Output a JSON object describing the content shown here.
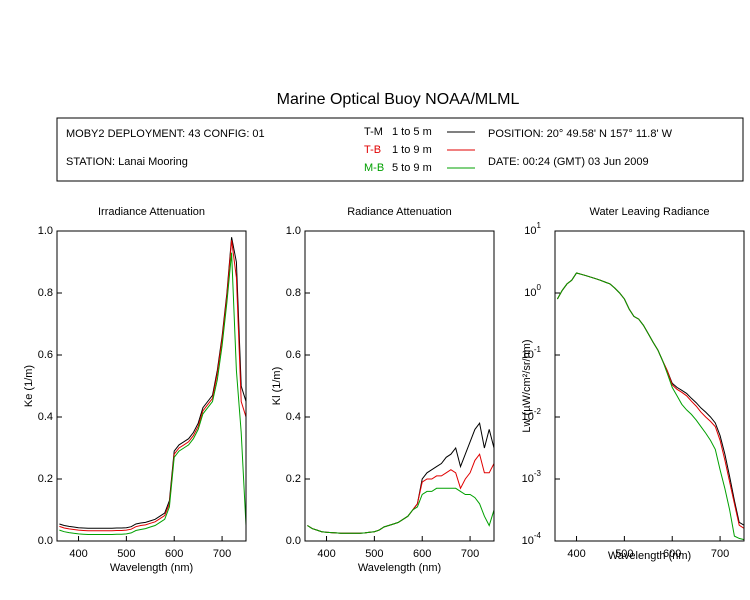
{
  "title": "Marine Optical Buoy NOAA/MLML",
  "info": {
    "deployment": "MOBY2 DEPLOYMENT: 43 CONFIG: 01",
    "station": "STATION: Lanai Mooring",
    "position": "POSITION: 20° 49.58' N   157° 11.8' W",
    "date": "DATE: 00:24 (GMT) 03 Jun 2009"
  },
  "chart_data": [
    {
      "type": "line",
      "title": "Irradiance Attenuation",
      "x_label": "Wavelength (nm)",
      "y_label": "Ke  (1/m)",
      "xlim": [
        355,
        750
      ],
      "xticks": [
        400,
        500,
        600,
        700
      ],
      "ylim": [
        0,
        1
      ],
      "yticks": [
        {
          "value": 0,
          "label": "0.0"
        },
        0.2,
        0.4,
        0.6,
        0.8,
        {
          "value": 1,
          "label": "1.0"
        }
      ],
      "x": [
        360,
        370,
        380,
        390,
        400,
        410,
        420,
        430,
        440,
        450,
        460,
        470,
        480,
        490,
        500,
        510,
        520,
        530,
        540,
        550,
        560,
        570,
        580,
        590,
        600,
        610,
        620,
        630,
        640,
        650,
        660,
        670,
        680,
        690,
        700,
        710,
        720,
        730,
        740,
        750
      ],
      "series": [
        {
          "name": "T-M",
          "depth": "1 to 5  m",
          "color": "#000000",
          "values": [
            0.055,
            0.05,
            0.047,
            0.045,
            0.043,
            0.042,
            0.041,
            0.041,
            0.041,
            0.041,
            0.041,
            0.041,
            0.042,
            0.042,
            0.043,
            0.046,
            0.055,
            0.058,
            0.06,
            0.065,
            0.07,
            0.08,
            0.09,
            0.13,
            0.29,
            0.31,
            0.32,
            0.33,
            0.35,
            0.38,
            0.43,
            0.45,
            0.47,
            0.55,
            0.66,
            0.8,
            0.98,
            0.9,
            0.5,
            0.45
          ]
        },
        {
          "name": "T-B",
          "depth": "1 to 9  m",
          "color": "#e00000",
          "values": [
            0.047,
            0.042,
            0.039,
            0.037,
            0.035,
            0.034,
            0.033,
            0.033,
            0.033,
            0.033,
            0.033,
            0.033,
            0.034,
            0.034,
            0.035,
            0.038,
            0.046,
            0.05,
            0.052,
            0.057,
            0.062,
            0.072,
            0.082,
            0.12,
            0.28,
            0.3,
            0.31,
            0.32,
            0.34,
            0.37,
            0.42,
            0.44,
            0.46,
            0.54,
            0.65,
            0.79,
            0.97,
            0.85,
            0.45,
            0.4
          ]
        },
        {
          "name": "M-B",
          "depth": "5 to 9  m",
          "color": "#00a000",
          "values": [
            0.035,
            0.03,
            0.027,
            0.025,
            0.023,
            0.022,
            0.021,
            0.021,
            0.021,
            0.021,
            0.021,
            0.021,
            0.022,
            0.022,
            0.023,
            0.026,
            0.034,
            0.037,
            0.04,
            0.045,
            0.05,
            0.06,
            0.07,
            0.11,
            0.27,
            0.29,
            0.3,
            0.31,
            0.33,
            0.36,
            0.41,
            0.43,
            0.45,
            0.52,
            0.63,
            0.77,
            0.93,
            0.55,
            0.35,
            0.05
          ]
        }
      ]
    },
    {
      "type": "line",
      "title": "Radiance Attenuation",
      "x_label": "Wavelength (nm)",
      "y_label": "Kl  (1/m)",
      "xlim": [
        355,
        750
      ],
      "xticks": [
        400,
        500,
        600,
        700
      ],
      "ylim": [
        0,
        1
      ],
      "yticks": [
        {
          "value": 0,
          "label": "0.0"
        },
        0.2,
        0.4,
        0.6,
        0.8,
        {
          "value": 1,
          "label": "1.0"
        }
      ],
      "x": [
        360,
        370,
        380,
        390,
        400,
        410,
        420,
        430,
        440,
        450,
        460,
        470,
        480,
        490,
        500,
        510,
        520,
        530,
        540,
        550,
        560,
        570,
        580,
        590,
        600,
        610,
        620,
        630,
        640,
        650,
        660,
        670,
        680,
        690,
        700,
        710,
        720,
        730,
        740,
        750
      ],
      "series": [
        {
          "name": "T-M",
          "color": "#000000",
          "values": [
            0.05,
            0.04,
            0.035,
            0.03,
            0.028,
            0.027,
            0.026,
            0.025,
            0.025,
            0.025,
            0.025,
            0.025,
            0.026,
            0.028,
            0.03,
            0.035,
            0.045,
            0.05,
            0.055,
            0.06,
            0.07,
            0.08,
            0.1,
            0.12,
            0.2,
            0.22,
            0.23,
            0.24,
            0.25,
            0.27,
            0.28,
            0.3,
            0.24,
            0.28,
            0.32,
            0.36,
            0.38,
            0.3,
            0.36,
            0.3
          ]
        },
        {
          "name": "T-B",
          "color": "#e00000",
          "values": [
            0.05,
            0.04,
            0.035,
            0.03,
            0.028,
            0.027,
            0.026,
            0.025,
            0.025,
            0.025,
            0.025,
            0.025,
            0.026,
            0.028,
            0.03,
            0.035,
            0.045,
            0.05,
            0.055,
            0.06,
            0.07,
            0.08,
            0.1,
            0.12,
            0.19,
            0.2,
            0.2,
            0.21,
            0.21,
            0.22,
            0.23,
            0.22,
            0.17,
            0.2,
            0.22,
            0.26,
            0.28,
            0.22,
            0.22,
            0.25
          ]
        },
        {
          "name": "M-B",
          "color": "#00a000",
          "values": [
            0.05,
            0.04,
            0.035,
            0.03,
            0.028,
            0.027,
            0.026,
            0.025,
            0.025,
            0.025,
            0.025,
            0.025,
            0.026,
            0.028,
            0.03,
            0.035,
            0.045,
            0.05,
            0.055,
            0.06,
            0.07,
            0.08,
            0.1,
            0.11,
            0.15,
            0.16,
            0.16,
            0.17,
            0.17,
            0.17,
            0.17,
            0.17,
            0.16,
            0.15,
            0.15,
            0.14,
            0.12,
            0.08,
            0.05,
            0.1
          ]
        }
      ]
    },
    {
      "type": "line",
      "title": "Water Leaving Radiance",
      "x_label": "Wavelength (nm)",
      "y_label": "Lw  (µW/cm²/sr/nm)",
      "log_y": true,
      "xlim": [
        355,
        750
      ],
      "xticks": [
        400,
        500,
        600,
        700
      ],
      "ylim": [
        0.0001,
        10
      ],
      "yticks": [
        {
          "value": 0.0001,
          "label": "10",
          "exponent": "-4"
        },
        {
          "value": 0.001,
          "label": "10",
          "exponent": "-3"
        },
        {
          "value": 0.01,
          "label": "10",
          "exponent": "-2"
        },
        {
          "value": 0.1,
          "label": "10",
          "exponent": "-1"
        },
        {
          "value": 1,
          "label": "10",
          "exponent": "0"
        },
        {
          "value": 10,
          "label": "10",
          "exponent": "1"
        }
      ],
      "x": [
        360,
        370,
        380,
        390,
        400,
        410,
        420,
        430,
        440,
        450,
        460,
        470,
        480,
        490,
        500,
        510,
        520,
        530,
        540,
        550,
        560,
        570,
        580,
        590,
        600,
        610,
        620,
        630,
        640,
        650,
        660,
        670,
        680,
        690,
        700,
        710,
        720,
        730,
        740,
        750
      ],
      "series": [
        {
          "name": "T-M",
          "color": "#000000",
          "values": [
            0.8,
            1.1,
            1.4,
            1.6,
            2.1,
            2.0,
            1.9,
            1.8,
            1.7,
            1.6,
            1.5,
            1.4,
            1.2,
            1.0,
            0.8,
            0.55,
            0.42,
            0.38,
            0.3,
            0.22,
            0.16,
            0.12,
            0.08,
            0.055,
            0.035,
            0.03,
            0.027,
            0.024,
            0.02,
            0.017,
            0.014,
            0.012,
            0.01,
            0.008,
            0.005,
            0.0025,
            0.0011,
            0.00045,
            0.0002,
            0.00018
          ]
        },
        {
          "name": "T-B",
          "color": "#e00000",
          "values": [
            0.8,
            1.1,
            1.4,
            1.6,
            2.1,
            2.0,
            1.9,
            1.8,
            1.7,
            1.6,
            1.5,
            1.4,
            1.2,
            1.0,
            0.8,
            0.55,
            0.42,
            0.38,
            0.3,
            0.22,
            0.16,
            0.12,
            0.08,
            0.055,
            0.033,
            0.028,
            0.025,
            0.022,
            0.018,
            0.015,
            0.012,
            0.01,
            0.0085,
            0.007,
            0.0042,
            0.002,
            0.0009,
            0.0004,
            0.00018,
            0.00016
          ]
        },
        {
          "name": "M-B",
          "color": "#00a000",
          "values": [
            0.8,
            1.1,
            1.4,
            1.6,
            2.1,
            2.0,
            1.9,
            1.8,
            1.7,
            1.6,
            1.5,
            1.4,
            1.2,
            1.0,
            0.8,
            0.55,
            0.42,
            0.38,
            0.3,
            0.22,
            0.16,
            0.12,
            0.08,
            0.05,
            0.03,
            0.022,
            0.016,
            0.013,
            0.011,
            0.0089,
            0.007,
            0.0055,
            0.0042,
            0.003,
            0.0014,
            0.0007,
            0.00032,
            0.00012,
            0.00011,
            0.000105
          ]
        }
      ]
    }
  ]
}
